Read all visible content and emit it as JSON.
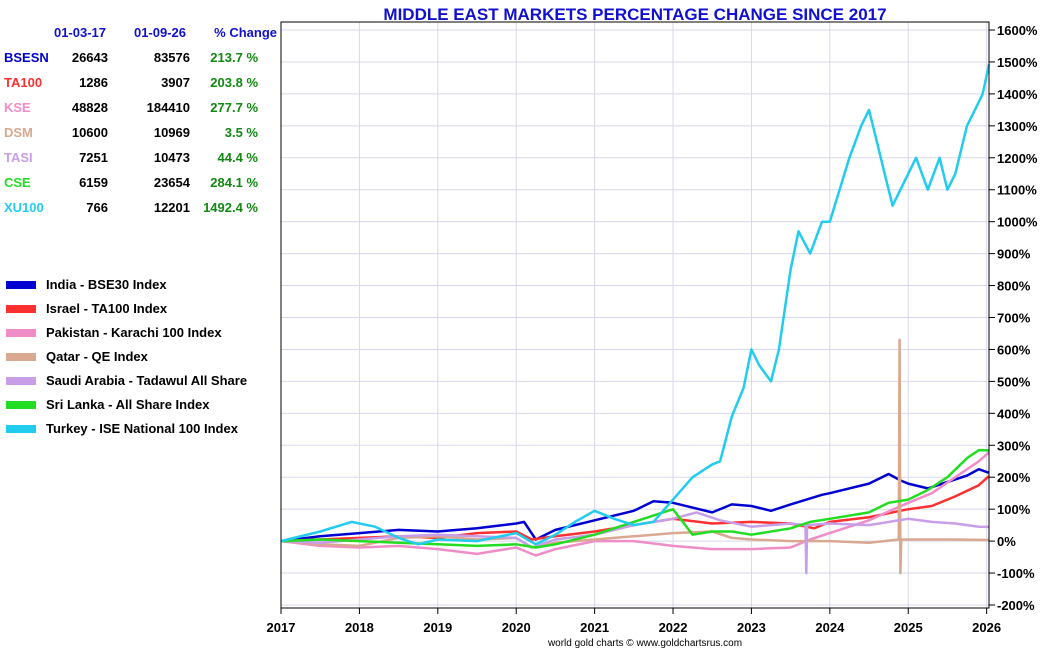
{
  "chart_data": {
    "type": "line",
    "title": "MIDDLE EAST MARKETS PERCENTAGE CHANGE SINCE 2017",
    "footer": "world gold charts © www.goldchartsrus.com",
    "x_ticks": [
      "2017",
      "2018",
      "2019",
      "2020",
      "2021",
      "2022",
      "2023",
      "2024",
      "2025",
      "2026"
    ],
    "x_range": [
      2017.0,
      2026.03
    ],
    "y_ticks": [
      "1600%",
      "1500%",
      "1400%",
      "1300%",
      "1200%",
      "1100%",
      "1000%",
      "900%",
      "800%",
      "700%",
      "600%",
      "500%",
      "400%",
      "300%",
      "200%",
      "100%",
      "0%",
      "-100%",
      "-200%"
    ],
    "y_range": [
      -200,
      1600
    ],
    "grid": true,
    "table": {
      "headers": [
        "",
        "01-03-17",
        "01-09-26",
        "% Change"
      ],
      "rows": [
        {
          "code": "BSESN",
          "start": "26643",
          "end": "83576",
          "change": "213.7 %",
          "color": "#0000d0"
        },
        {
          "code": "TA100",
          "start": "1286",
          "end": "3907",
          "change": "203.8 %",
          "color": "#ff3030"
        },
        {
          "code": "KSE",
          "start": "48828",
          "end": "184410",
          "change": "277.7 %",
          "color": "#f08cc8"
        },
        {
          "code": "DSM",
          "start": "10600",
          "end": "10969",
          "change": "3.5 %",
          "color": "#d8a890"
        },
        {
          "code": "TASI",
          "start": "7251",
          "end": "10473",
          "change": "44.4 %",
          "color": "#c89ee8"
        },
        {
          "code": "CSE",
          "start": "6159",
          "end": "23654",
          "change": "284.1 %",
          "color": "#22dd22"
        },
        {
          "code": "XU100",
          "start": "766",
          "end": "12201",
          "change": "1492.4 %",
          "color": "#22ccee"
        }
      ],
      "change_color": "#118811"
    },
    "series": [
      {
        "name": "India - BSE30 Index",
        "color": "#0000d0",
        "points": [
          [
            2017.0,
            0
          ],
          [
            2017.5,
            15
          ],
          [
            2018.0,
            25
          ],
          [
            2018.5,
            35
          ],
          [
            2019.0,
            30
          ],
          [
            2019.5,
            40
          ],
          [
            2020.0,
            55
          ],
          [
            2020.1,
            60
          ],
          [
            2020.25,
            5
          ],
          [
            2020.5,
            35
          ],
          [
            2021.0,
            65
          ],
          [
            2021.5,
            95
          ],
          [
            2021.75,
            125
          ],
          [
            2022.0,
            120
          ],
          [
            2022.5,
            90
          ],
          [
            2022.75,
            115
          ],
          [
            2023.0,
            110
          ],
          [
            2023.25,
            95
          ],
          [
            2023.5,
            115
          ],
          [
            2023.9,
            145
          ],
          [
            2024.0,
            150
          ],
          [
            2024.5,
            180
          ],
          [
            2024.75,
            210
          ],
          [
            2024.9,
            190
          ],
          [
            2025.0,
            180
          ],
          [
            2025.25,
            165
          ],
          [
            2025.5,
            185
          ],
          [
            2025.75,
            205
          ],
          [
            2025.9,
            225
          ],
          [
            2026.03,
            213.7
          ]
        ]
      },
      {
        "name": "Israel - TA100 Index",
        "color": "#ff3030",
        "points": [
          [
            2017.0,
            0
          ],
          [
            2017.5,
            5
          ],
          [
            2018.0,
            10
          ],
          [
            2018.5,
            15
          ],
          [
            2019.0,
            10
          ],
          [
            2019.5,
            25
          ],
          [
            2020.0,
            30
          ],
          [
            2020.2,
            5
          ],
          [
            2020.5,
            15
          ],
          [
            2021.0,
            30
          ],
          [
            2021.5,
            50
          ],
          [
            2022.0,
            70
          ],
          [
            2022.5,
            55
          ],
          [
            2023.0,
            60
          ],
          [
            2023.5,
            55
          ],
          [
            2023.8,
            40
          ],
          [
            2024.0,
            60
          ],
          [
            2024.5,
            75
          ],
          [
            2025.0,
            100
          ],
          [
            2025.3,
            110
          ],
          [
            2025.6,
            140
          ],
          [
            2025.9,
            175
          ],
          [
            2026.03,
            203.8
          ]
        ]
      },
      {
        "name": "Pakistan - Karachi 100 Index",
        "color": "#f08cc8",
        "points": [
          [
            2017.0,
            0
          ],
          [
            2017.5,
            -15
          ],
          [
            2018.0,
            -20
          ],
          [
            2018.5,
            -15
          ],
          [
            2019.0,
            -25
          ],
          [
            2019.5,
            -40
          ],
          [
            2020.0,
            -20
          ],
          [
            2020.25,
            -45
          ],
          [
            2020.5,
            -25
          ],
          [
            2021.0,
            0
          ],
          [
            2021.5,
            0
          ],
          [
            2022.0,
            -15
          ],
          [
            2022.5,
            -25
          ],
          [
            2023.0,
            -25
          ],
          [
            2023.5,
            -20
          ],
          [
            2023.75,
            5
          ],
          [
            2024.0,
            25
          ],
          [
            2024.5,
            65
          ],
          [
            2025.0,
            120
          ],
          [
            2025.3,
            150
          ],
          [
            2025.6,
            200
          ],
          [
            2025.9,
            250
          ],
          [
            2026.03,
            277.7
          ]
        ]
      },
      {
        "name": "Qatar - QE Index",
        "color": "#d8a890",
        "points": [
          [
            2017.0,
            0
          ],
          [
            2017.5,
            -10
          ],
          [
            2018.0,
            -15
          ],
          [
            2018.5,
            10
          ],
          [
            2019.0,
            15
          ],
          [
            2019.5,
            5
          ],
          [
            2020.0,
            10
          ],
          [
            2020.2,
            -20
          ],
          [
            2020.5,
            -5
          ],
          [
            2021.0,
            5
          ],
          [
            2021.5,
            15
          ],
          [
            2022.0,
            25
          ],
          [
            2022.5,
            30
          ],
          [
            2022.75,
            10
          ],
          [
            2023.0,
            5
          ],
          [
            2023.5,
            0
          ],
          [
            2024.0,
            0
          ],
          [
            2024.5,
            -5
          ],
          [
            2024.88,
            5
          ],
          [
            2024.89,
            630
          ],
          [
            2024.9,
            -100
          ],
          [
            2024.91,
            5
          ],
          [
            2025.2,
            5
          ],
          [
            2025.6,
            5
          ],
          [
            2026.03,
            3.5
          ]
        ]
      },
      {
        "name": "Saudi Arabia - Tadawul All Share",
        "color": "#c89ee8",
        "points": [
          [
            2017.0,
            0
          ],
          [
            2017.5,
            -5
          ],
          [
            2018.0,
            5
          ],
          [
            2018.5,
            15
          ],
          [
            2019.0,
            20
          ],
          [
            2019.5,
            15
          ],
          [
            2020.0,
            10
          ],
          [
            2020.2,
            -20
          ],
          [
            2020.5,
            5
          ],
          [
            2021.0,
            20
          ],
          [
            2021.5,
            50
          ],
          [
            2022.0,
            70
          ],
          [
            2022.3,
            90
          ],
          [
            2022.6,
            65
          ],
          [
            2023.0,
            45
          ],
          [
            2023.5,
            55
          ],
          [
            2023.69,
            50
          ],
          [
            2023.7,
            -100
          ],
          [
            2023.71,
            50
          ],
          [
            2024.0,
            55
          ],
          [
            2024.5,
            50
          ],
          [
            2025.0,
            70
          ],
          [
            2025.3,
            60
          ],
          [
            2025.6,
            55
          ],
          [
            2025.9,
            45
          ],
          [
            2026.03,
            44.4
          ]
        ]
      },
      {
        "name": "Sri Lanka - All Share Index",
        "color": "#22dd22",
        "points": [
          [
            2017.0,
            0
          ],
          [
            2017.5,
            5
          ],
          [
            2018.0,
            0
          ],
          [
            2018.5,
            -5
          ],
          [
            2019.0,
            -10
          ],
          [
            2019.5,
            -15
          ],
          [
            2020.0,
            -10
          ],
          [
            2020.25,
            -20
          ],
          [
            2020.5,
            -10
          ],
          [
            2021.0,
            20
          ],
          [
            2021.5,
            60
          ],
          [
            2022.0,
            100
          ],
          [
            2022.25,
            20
          ],
          [
            2022.5,
            30
          ],
          [
            2022.75,
            30
          ],
          [
            2023.0,
            20
          ],
          [
            2023.5,
            40
          ],
          [
            2023.75,
            60
          ],
          [
            2024.0,
            70
          ],
          [
            2024.5,
            90
          ],
          [
            2024.75,
            120
          ],
          [
            2025.0,
            130
          ],
          [
            2025.25,
            160
          ],
          [
            2025.5,
            200
          ],
          [
            2025.75,
            260
          ],
          [
            2025.9,
            285
          ],
          [
            2026.03,
            284.1
          ]
        ]
      },
      {
        "name": "Turkey - ISE National 100 Index",
        "color": "#22ccee",
        "points": [
          [
            2017.0,
            0
          ],
          [
            2017.5,
            30
          ],
          [
            2017.9,
            60
          ],
          [
            2018.2,
            45
          ],
          [
            2018.5,
            10
          ],
          [
            2018.75,
            -10
          ],
          [
            2019.0,
            5
          ],
          [
            2019.5,
            0
          ],
          [
            2020.0,
            25
          ],
          [
            2020.25,
            -10
          ],
          [
            2020.5,
            20
          ],
          [
            2020.75,
            60
          ],
          [
            2021.0,
            95
          ],
          [
            2021.25,
            70
          ],
          [
            2021.5,
            50
          ],
          [
            2021.75,
            60
          ],
          [
            2022.0,
            130
          ],
          [
            2022.25,
            200
          ],
          [
            2022.5,
            240
          ],
          [
            2022.6,
            250
          ],
          [
            2022.75,
            390
          ],
          [
            2022.9,
            480
          ],
          [
            2023.0,
            600
          ],
          [
            2023.1,
            550
          ],
          [
            2023.25,
            500
          ],
          [
            2023.35,
            600
          ],
          [
            2023.5,
            850
          ],
          [
            2023.6,
            970
          ],
          [
            2023.75,
            900
          ],
          [
            2023.9,
            1000
          ],
          [
            2024.0,
            1000
          ],
          [
            2024.25,
            1200
          ],
          [
            2024.4,
            1300
          ],
          [
            2024.5,
            1350
          ],
          [
            2024.6,
            1250
          ],
          [
            2024.7,
            1150
          ],
          [
            2024.8,
            1050
          ],
          [
            2024.9,
            1100
          ],
          [
            2025.0,
            1150
          ],
          [
            2025.1,
            1200
          ],
          [
            2025.25,
            1100
          ],
          [
            2025.4,
            1200
          ],
          [
            2025.5,
            1100
          ],
          [
            2025.6,
            1150
          ],
          [
            2025.75,
            1300
          ],
          [
            2025.85,
            1350
          ],
          [
            2025.95,
            1400
          ],
          [
            2026.03,
            1492.4
          ]
        ]
      }
    ]
  }
}
